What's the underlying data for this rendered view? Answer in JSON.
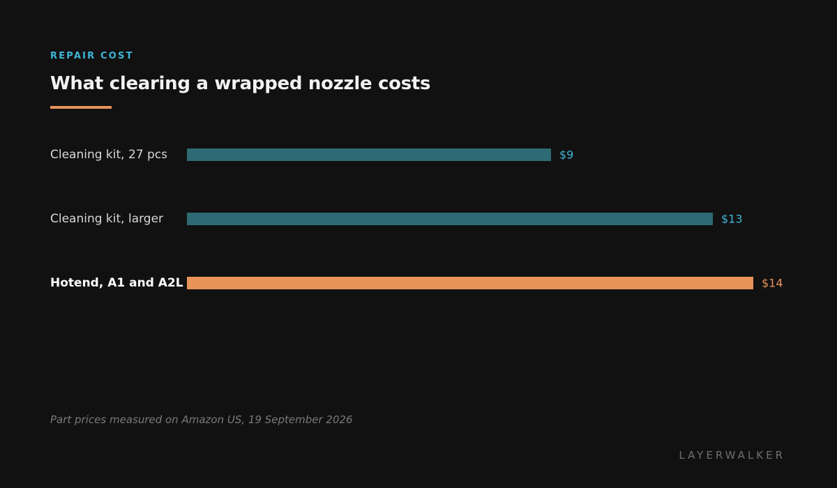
{
  "header": {
    "eyebrow": "REPAIR COST",
    "title": "What clearing a wrapped nozzle costs"
  },
  "chart_data": {
    "type": "bar",
    "orientation": "horizontal",
    "title": "What clearing a wrapped nozzle costs",
    "categories": [
      "Cleaning kit, 27 pcs",
      "Cleaning kit, larger",
      "Hotend, A1 and A2L"
    ],
    "values": [
      9,
      13,
      14
    ],
    "value_labels": [
      "$9",
      "$13",
      "$14"
    ],
    "highlight_index": 2,
    "xlim": [
      0,
      14
    ],
    "grid": false,
    "colors": {
      "default_bar": "#2e6a73",
      "highlight_bar": "#e8935a",
      "default_value": "#3fb6d8",
      "highlight_value": "#e8935a",
      "default_label": "#d8d8d8",
      "highlight_label": "#ffffff"
    }
  },
  "footer": {
    "note": "Part prices measured on Amazon US, 19 September 2026",
    "brand": "LAYERWALKER"
  }
}
